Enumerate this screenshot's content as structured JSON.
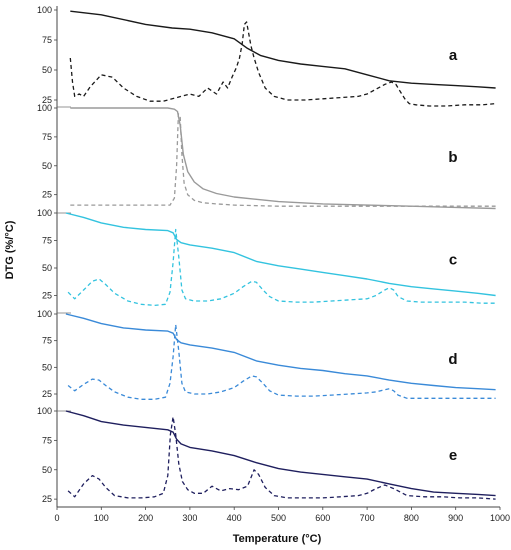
{
  "chart_data": {
    "type": "line",
    "xlabel": "Temperature (°C)",
    "ylabel": "DTG (%/°C)",
    "xlim": [
      0,
      1000
    ],
    "x_ticks": [
      "0",
      "100",
      "200",
      "300",
      "400",
      "500",
      "600",
      "700",
      "800",
      "900",
      "1000"
    ],
    "panels": [
      {
        "label": "a",
        "ylim": [
          20,
          100
        ],
        "y_ticks": [
          "100",
          "75",
          "50",
          "25"
        ],
        "color": "#1a1a1a",
        "series": [
          {
            "style": "solid",
            "x": [
              30,
              100,
              200,
              260,
              300,
              350,
              400,
              430,
              460,
              500,
              550,
              600,
              650,
              700,
              750,
              800,
              850,
              900,
              950,
              990
            ],
            "y": [
              99,
              96,
              88,
              85,
              84,
              81,
              76,
              68,
              62,
              58,
              55,
              53,
              51,
              46,
              41,
              39,
              38,
              37,
              36,
              35
            ]
          },
          {
            "style": "dashed",
            "x": [
              30,
              35,
              40,
              50,
              60,
              75,
              100,
              125,
              150,
              180,
              210,
              240,
              260,
              280,
              300,
              320,
              340,
              360,
              375,
              385,
              395,
              405,
              412,
              418,
              423,
              428,
              433,
              438,
              445,
              455,
              470,
              490,
              520,
              560,
              600,
              640,
              680,
              700,
              720,
              740,
              755,
              765,
              775,
              785,
              795,
              810,
              840,
              880,
              920,
              960,
              990
            ],
            "y": [
              60,
              40,
              28,
              30,
              28,
              36,
              46,
              44,
              35,
              28,
              24,
              24,
              26,
              28,
              30,
              28,
              35,
              30,
              40,
              35,
              44,
              52,
              60,
              72,
              88,
              90,
              80,
              70,
              60,
              48,
              35,
              28,
              25,
              25,
              26,
              27,
              28,
              30,
              34,
              38,
              40,
              38,
              32,
              26,
              22,
              21,
              20,
              20,
              21,
              21,
              22
            ]
          }
        ]
      },
      {
        "label": "b",
        "ylim": [
          10,
          100
        ],
        "y_ticks": [
          "100",
          "75",
          "50",
          "25"
        ],
        "color": "#9a9a9a",
        "series": [
          {
            "style": "solid",
            "x": [
              30,
              100,
              200,
              250,
              265,
              272,
              278,
              285,
              295,
              310,
              330,
              360,
              400,
              450,
              500,
              600,
              700,
              800,
              900,
              990
            ],
            "y": [
              100,
              100,
              100,
              100,
              99,
              97,
              85,
              60,
              45,
              36,
              30,
              26,
              23,
              21,
              19,
              17,
              16,
              15,
              14,
              13
            ]
          },
          {
            "style": "dashed",
            "x": [
              30,
              100,
              200,
              255,
              265,
              270,
              274,
              278,
              282,
              287,
              295,
              310,
              330,
              360,
              400,
              500,
              700,
              900,
              990
            ],
            "y": [
              16,
              16,
              16,
              16,
              22,
              50,
              95,
              92,
              60,
              35,
              25,
              20,
              18,
              17,
              16,
              15,
              15,
              15,
              15
            ]
          }
        ]
      },
      {
        "label": "c",
        "ylim": [
          10,
          100
        ],
        "y_ticks": [
          "100",
          "75",
          "50",
          "25"
        ],
        "color": "#33c3df",
        "series": [
          {
            "style": "solid",
            "x": [
              20,
              60,
              100,
              150,
              200,
              250,
              262,
              270,
              280,
              300,
              350,
              400,
              450,
              500,
              550,
              600,
              650,
              700,
              750,
              800,
              850,
              900,
              950,
              990
            ],
            "y": [
              100,
              96,
              91,
              87,
              85,
              84,
              82,
              76,
              73,
              71,
              68,
              64,
              56,
              52,
              49,
              46,
              43,
              40,
              36,
              33,
              31,
              29,
              27,
              25
            ]
          },
          {
            "style": "dashed",
            "x": [
              25,
              40,
              60,
              80,
              95,
              110,
              130,
              160,
              190,
              220,
              245,
              255,
              262,
              268,
              275,
              282,
              290,
              310,
              340,
              370,
              400,
              420,
              440,
              450,
              465,
              480,
              500,
              540,
              580,
              620,
              660,
              700,
              720,
              740,
              750,
              760,
              770,
              790,
              820,
              870,
              920,
              960,
              990
            ],
            "y": [
              28,
              22,
              30,
              38,
              40,
              35,
              27,
              20,
              17,
              16,
              17,
              28,
              55,
              85,
              60,
              30,
              22,
              20,
              20,
              22,
              27,
              33,
              38,
              37,
              30,
              24,
              20,
              19,
              19,
              20,
              21,
              22,
              25,
              30,
              32,
              30,
              24,
              20,
              19,
              19,
              19,
              18,
              18
            ]
          }
        ]
      },
      {
        "label": "d",
        "ylim": [
          10,
          100
        ],
        "y_ticks": [
          "100",
          "75",
          "50",
          "25"
        ],
        "color": "#3a8ad8",
        "series": [
          {
            "style": "solid",
            "x": [
              20,
              60,
              100,
              150,
              200,
              250,
              262,
              270,
              280,
              300,
              350,
              400,
              450,
              500,
              550,
              600,
              650,
              700,
              750,
              800,
              850,
              900,
              950,
              990
            ],
            "y": [
              100,
              96,
              91,
              87,
              85,
              84,
              82,
              76,
              73,
              71,
              68,
              64,
              56,
              52,
              49,
              47,
              44,
              42,
              38,
              35,
              33,
              31,
              30,
              29
            ]
          },
          {
            "style": "dashed",
            "x": [
              25,
              40,
              60,
              80,
              95,
              110,
              130,
              160,
              190,
              220,
              245,
              255,
              262,
              268,
              275,
              282,
              290,
              310,
              340,
              370,
              400,
              420,
              440,
              450,
              465,
              480,
              500,
              540,
              580,
              620,
              660,
              700,
              720,
              740,
              750,
              760,
              770,
              790,
              820,
              870,
              920,
              960,
              990
            ],
            "y": [
              33,
              28,
              34,
              39,
              38,
              33,
              27,
              22,
              20,
              20,
              22,
              35,
              60,
              90,
              65,
              35,
              27,
              25,
              25,
              27,
              31,
              37,
              42,
              41,
              35,
              28,
              24,
              23,
              23,
              24,
              25,
              26,
              27,
              29,
              30,
              28,
              24,
              21,
              21,
              21,
              21,
              21,
              21
            ]
          }
        ]
      },
      {
        "label": "e",
        "ylim": [
          20,
          100
        ],
        "y_ticks": [
          "100",
          "75",
          "50",
          "25"
        ],
        "color": "#1f1f5e",
        "series": [
          {
            "style": "solid",
            "x": [
              20,
              60,
              100,
              150,
              200,
              250,
              262,
              270,
              280,
              300,
              350,
              400,
              450,
              500,
              550,
              600,
              650,
              700,
              750,
              800,
              850,
              900,
              950,
              990
            ],
            "y": [
              100,
              96,
              91,
              88,
              86,
              84,
              82,
              76,
              72,
              69,
              66,
              62,
              56,
              51,
              48,
              46,
              44,
              42,
              38,
              34,
              31,
              30,
              29,
              28
            ]
          },
          {
            "style": "dashed",
            "x": [
              25,
              40,
              60,
              80,
              95,
              110,
              130,
              160,
              190,
              220,
              240,
              250,
              256,
              262,
              268,
              275,
              283,
              295,
              310,
              330,
              350,
              370,
              390,
              410,
              430,
              445,
              455,
              470,
              490,
              520,
              560,
              600,
              640,
              680,
              700,
              720,
              740,
              760,
              790,
              830,
              870,
              910,
              950,
              990
            ],
            "y": [
              32,
              27,
              38,
              45,
              42,
              35,
              28,
              26,
              26,
              27,
              30,
              45,
              80,
              95,
              80,
              55,
              40,
              33,
              30,
              30,
              36,
              32,
              34,
              33,
              36,
              50,
              46,
              35,
              28,
              26,
              26,
              26,
              27,
              28,
              30,
              34,
              37,
              34,
              28,
              27,
              27,
              26,
              26,
              25
            ]
          }
        ]
      }
    ]
  }
}
